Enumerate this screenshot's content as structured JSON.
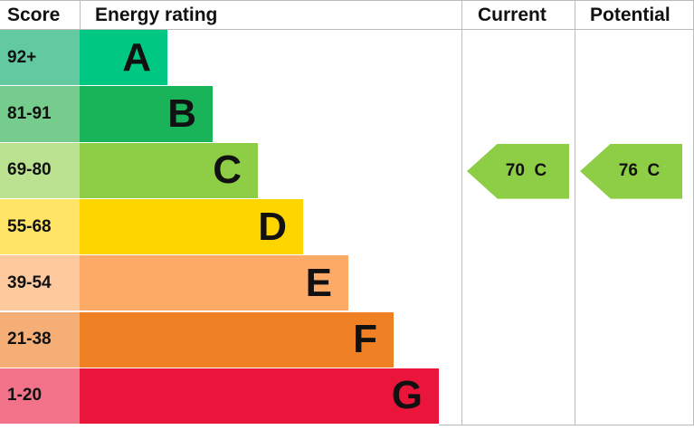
{
  "chart_data": {
    "type": "bar",
    "headers": {
      "score": "Score",
      "rating": "Energy rating",
      "current": "Current",
      "potential": "Potential"
    },
    "bands": [
      {
        "score": "92+",
        "letter": "A",
        "color": "#00c781",
        "score_color": "#63c9a1"
      },
      {
        "score": "81-91",
        "letter": "B",
        "color": "#19b459",
        "score_color": "#75cc8c"
      },
      {
        "score": "69-80",
        "letter": "C",
        "color": "#8dce46",
        "score_color": "#bbe290"
      },
      {
        "score": "55-68",
        "letter": "D",
        "color": "#ffd500",
        "score_color": "#ffe468"
      },
      {
        "score": "39-54",
        "letter": "E",
        "color": "#fcaa65",
        "score_color": "#fdc99d"
      },
      {
        "score": "21-38",
        "letter": "F",
        "color": "#ef8023",
        "score_color": "#f4ae76"
      },
      {
        "score": "1-20",
        "letter": "G",
        "color": "#e9153b",
        "score_color": "#f27389"
      }
    ],
    "current": {
      "value": 70,
      "band": "C",
      "label": "70  C"
    },
    "potential": {
      "value": 76,
      "band": "C",
      "label": "76  C"
    }
  }
}
